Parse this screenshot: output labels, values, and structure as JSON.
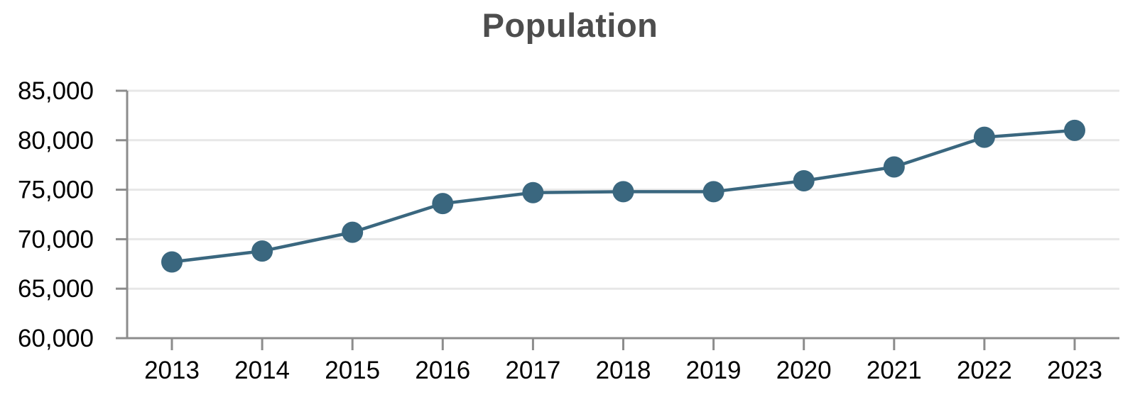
{
  "chart_data": {
    "type": "line",
    "title": "Population",
    "categories": [
      "2013",
      "2014",
      "2015",
      "2016",
      "2017",
      "2018",
      "2019",
      "2020",
      "2021",
      "2022",
      "2023"
    ],
    "values": [
      67700,
      68800,
      70700,
      73600,
      74700,
      74800,
      74800,
      75900,
      77300,
      80300,
      81000
    ],
    "xlabel": "",
    "ylabel": "",
    "ylim": [
      60000,
      85000
    ],
    "ytick_step": 5000,
    "ytick_labels": [
      "60,000",
      "65,000",
      "70,000",
      "75,000",
      "80,000",
      "85,000"
    ],
    "grid": "horizontal-only",
    "legend": "none",
    "marker": "circle",
    "colors": {
      "line": "#3a677f",
      "marker": "#3a677f",
      "axis": "#8c8c8c",
      "gridline": "#e7e7e7",
      "title": "#4d4d4d",
      "tick_label": "#000000",
      "background": "#ffffff"
    }
  }
}
